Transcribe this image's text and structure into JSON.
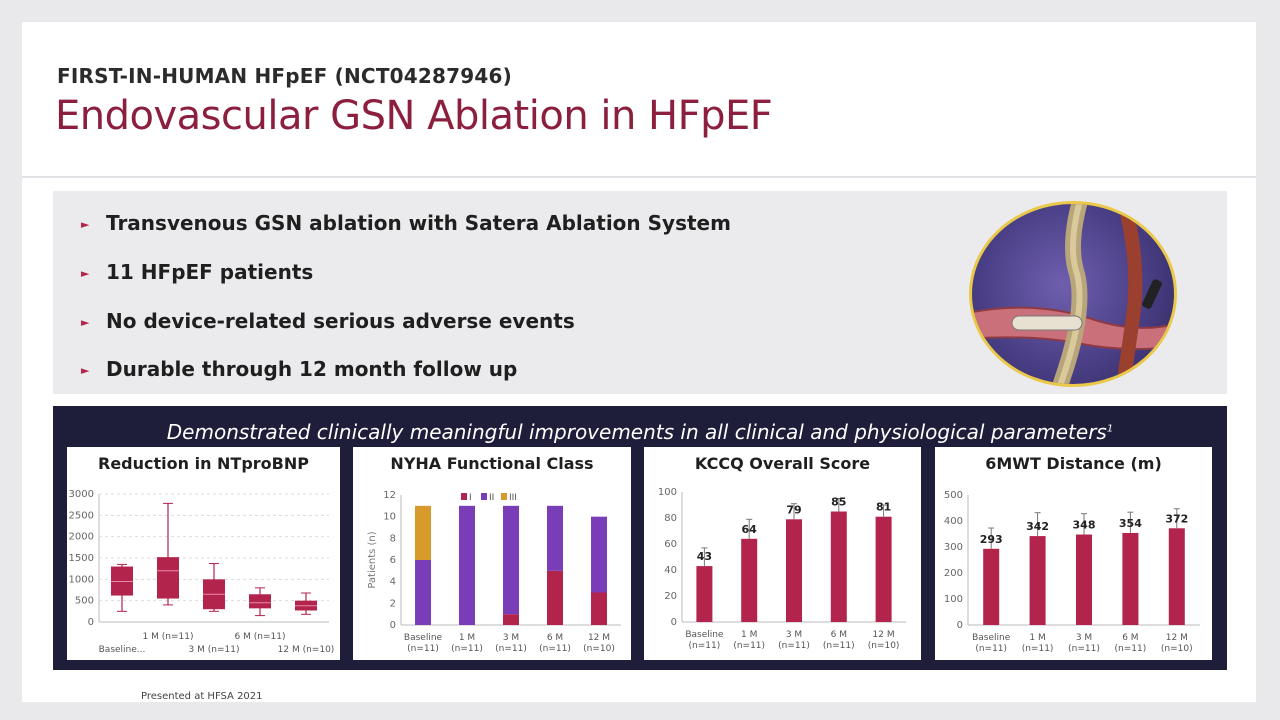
{
  "header": {
    "eyebrow": "FIRST-IN-HUMAN HFpEF (NCT04287946)",
    "title": "Endovascular GSN Ablation in HFpEF"
  },
  "bullets": [
    "Transvenous GSN ablation with Satera Ablation System",
    "11 HFpEF patients",
    "No device-related serious adverse events",
    "Durable through 12 month follow up"
  ],
  "panel": {
    "title": "Demonstrated clinically meaningful improvements in all clinical and physiological parameters",
    "superscript": "1"
  },
  "footer": "Presented at HFSA 2021",
  "colors": {
    "accent": "#b3244d",
    "title": "#8b1f3d",
    "panel": "#1f1e3a",
    "purple": "#7a3db8",
    "gold": "#d79a2b"
  },
  "chart_data": [
    {
      "type": "box",
      "title": "Reduction in NTproBNP",
      "categories": [
        "Baseline...",
        "1 M (n=11)",
        "3 M (n=11)",
        "6 M (n=11)",
        "12 M (n=10)"
      ],
      "ylim": [
        0,
        3000
      ],
      "yticks": [
        0,
        500,
        1000,
        1500,
        2000,
        2500,
        3000
      ],
      "boxes": [
        {
          "min": 250,
          "q1": 620,
          "median": 950,
          "q3": 1300,
          "max": 1350
        },
        {
          "min": 400,
          "q1": 550,
          "median": 1200,
          "q3": 1520,
          "max": 2780
        },
        {
          "min": 250,
          "q1": 300,
          "median": 650,
          "q3": 1000,
          "max": 1370
        },
        {
          "min": 150,
          "q1": 320,
          "median": 450,
          "q3": 650,
          "max": 800
        },
        {
          "min": 180,
          "q1": 270,
          "median": 380,
          "q3": 500,
          "max": 680
        }
      ]
    },
    {
      "type": "bar",
      "stacked": true,
      "title": "NYHA Functional Class",
      "ylabel": "Patients (n)",
      "categories": [
        "Baseline (n=11)",
        "1 M (n=11)",
        "3 M (n=11)",
        "6 M (n=11)",
        "12 M (n=10)"
      ],
      "ylim": [
        0,
        12
      ],
      "yticks": [
        0,
        2,
        4,
        6,
        8,
        10,
        12
      ],
      "legend": "top",
      "series": [
        {
          "name": "I",
          "color": "#b3244d",
          "values": [
            0,
            0,
            1,
            5,
            3
          ]
        },
        {
          "name": "II",
          "color": "#7a3db8",
          "values": [
            6,
            11,
            10,
            6,
            7
          ]
        },
        {
          "name": "III",
          "color": "#d79a2b",
          "values": [
            5,
            0,
            0,
            0,
            0
          ]
        }
      ]
    },
    {
      "type": "bar",
      "title": "KCCQ Overall Score",
      "categories": [
        "Baseline (n=11)",
        "1 M (n=11)",
        "3 M (n=11)",
        "6 M (n=11)",
        "12 M (n=10)"
      ],
      "ylim": [
        0,
        100
      ],
      "yticks": [
        0,
        20,
        40,
        60,
        80,
        100
      ],
      "values": [
        43,
        64,
        79,
        85,
        81
      ],
      "errors": [
        14,
        15,
        12,
        10,
        9
      ]
    },
    {
      "type": "bar",
      "title": "6MWT Distance (m)",
      "categories": [
        "Baseline (n=11)",
        "1 M (n=11)",
        "3 M (n=11)",
        "6 M (n=11)",
        "12 M (n=10)"
      ],
      "ylim": [
        0,
        500
      ],
      "yticks": [
        0,
        100,
        200,
        300,
        400,
        500
      ],
      "values": [
        293,
        342,
        348,
        354,
        372
      ],
      "errors": [
        80,
        90,
        80,
        80,
        75
      ]
    }
  ]
}
